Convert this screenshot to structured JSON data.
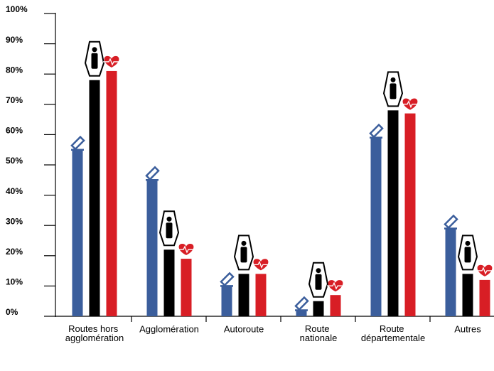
{
  "chart_data": {
    "type": "bar",
    "categories": [
      "Routes hors agglomération",
      "Agglomération",
      "Autoroute",
      "Route nationale",
      "Route départementale",
      "Autres"
    ],
    "series": [
      {
        "color": "#3b5e9c",
        "values": [
          55,
          45,
          10,
          2,
          59,
          29
        ]
      },
      {
        "color": "#000000",
        "values": [
          78,
          22,
          14,
          5,
          68,
          14
        ]
      },
      {
        "color": "#d81e25",
        "values": [
          81,
          19,
          14,
          7,
          67,
          12
        ]
      }
    ],
    "ylim": [
      0,
      100
    ],
    "yticks": [
      {
        "value": 0,
        "label": "0%"
      },
      {
        "value": 10,
        "label": "10%"
      },
      {
        "value": 20,
        "label": "20%"
      },
      {
        "value": 30,
        "label": "30%"
      },
      {
        "value": 40,
        "label": "40%"
      },
      {
        "value": 50,
        "label": "50%"
      },
      {
        "value": 60,
        "label": "60%"
      },
      {
        "value": 70,
        "label": "70%"
      },
      {
        "value": 80,
        "label": "80%"
      },
      {
        "value": 90,
        "label": "90%"
      },
      {
        "value": 100,
        "label": "100%"
      }
    ],
    "grid": false
  }
}
